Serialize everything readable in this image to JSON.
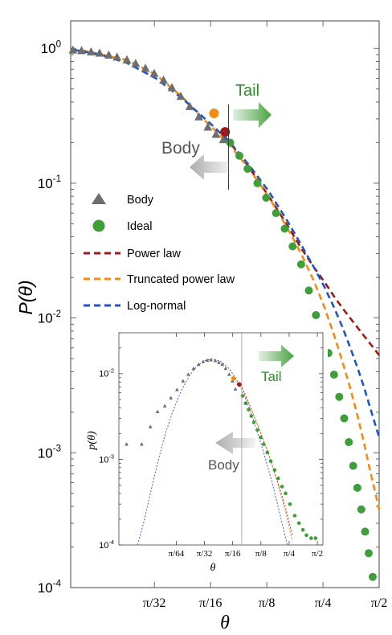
{
  "chart_data": [
    {
      "type": "scatter",
      "scale": {
        "x": "log",
        "y": "log"
      },
      "xlabel": "θ",
      "ylabel": "P(θ)",
      "xlim": [
        0.035,
        1.57
      ],
      "ylim": [
        0.0001,
        1.6
      ],
      "x_ticks": [
        {
          "value": 0.0982,
          "label": "π/32"
        },
        {
          "value": 0.1963,
          "label": "π/16"
        },
        {
          "value": 0.3927,
          "label": "π/8"
        },
        {
          "value": 0.7854,
          "label": "π/4"
        },
        {
          "value": 1.5708,
          "label": "π/2"
        }
      ],
      "y_ticks": [
        {
          "value": 1,
          "base": "10",
          "exp": "0"
        },
        {
          "value": 0.1,
          "base": "10",
          "exp": "-1"
        },
        {
          "value": 0.01,
          "base": "10",
          "exp": "-2"
        },
        {
          "value": 0.001,
          "base": "10",
          "exp": "-3"
        },
        {
          "value": 0.0001,
          "base": "10",
          "exp": "-4"
        }
      ],
      "annotations": {
        "tail": "Tail",
        "body": "Body",
        "split_x": 0.245
      },
      "legend": {
        "placement": "center-left",
        "entries": [
          {
            "label": "Body",
            "marker": "triangle",
            "color": "#6d6d6d"
          },
          {
            "label": "Ideal",
            "marker": "circle",
            "color": "#3f9e3a"
          },
          {
            "label": "Power law",
            "marker": "dash",
            "color": "#a01818"
          },
          {
            "label": "Truncated power law",
            "marker": "dash",
            "color": "#f08c12"
          },
          {
            "label": "Log-normal",
            "marker": "dash",
            "color": "#1f56c4"
          }
        ]
      },
      "series": [
        {
          "name": "Body",
          "type": "scatter",
          "color": "#6d6d6d",
          "x": [
            0.036,
            0.04,
            0.045,
            0.05,
            0.056,
            0.062,
            0.07,
            0.078,
            0.088,
            0.098,
            0.11,
            0.122,
            0.136,
            0.152,
            0.17,
            0.19,
            0.21,
            0.23
          ],
          "y": [
            0.97,
            0.96,
            0.94,
            0.92,
            0.89,
            0.86,
            0.82,
            0.77,
            0.71,
            0.65,
            0.58,
            0.51,
            0.44,
            0.37,
            0.31,
            0.26,
            0.23,
            0.21
          ]
        },
        {
          "name": "Ideal",
          "type": "scatter",
          "color": "#3f9e3a",
          "x": [
            0.25,
            0.28,
            0.31,
            0.35,
            0.39,
            0.44,
            0.49,
            0.54,
            0.6,
            0.66,
            0.72,
            0.78,
            0.84,
            0.9,
            0.96,
            1.02,
            1.08,
            1.14,
            1.2,
            1.26,
            1.32,
            1.38,
            1.45
          ],
          "y": [
            0.2,
            0.16,
            0.128,
            0.1,
            0.078,
            0.06,
            0.046,
            0.034,
            0.025,
            0.016,
            0.0105,
            0.0072,
            0.0055,
            0.0038,
            0.0026,
            0.0018,
            0.0012,
            0.0008,
            0.00055,
            0.00038,
            0.00026,
            0.00018,
            0.00012
          ]
        },
        {
          "name": "Power law",
          "type": "line",
          "color": "#a01818",
          "x": [
            0.235,
            0.3,
            0.4,
            0.5,
            0.6,
            0.7,
            0.8,
            0.9,
            1.0,
            1.15,
            1.3,
            1.45,
            1.57
          ],
          "y": [
            0.22,
            0.145,
            0.081,
            0.05,
            0.033,
            0.024,
            0.0185,
            0.0145,
            0.0118,
            0.0092,
            0.0074,
            0.0061,
            0.0053
          ]
        },
        {
          "name": "Truncated power law",
          "type": "line",
          "color": "#f08c12",
          "x": [
            0.04,
            0.07,
            0.1,
            0.14,
            0.17,
            0.2,
            0.25,
            0.32,
            0.4,
            0.5,
            0.6,
            0.7,
            0.8,
            0.9,
            1.0,
            1.1,
            1.2,
            1.3,
            1.4,
            1.5,
            1.57
          ],
          "y": [
            0.97,
            0.82,
            0.64,
            0.43,
            0.32,
            0.26,
            0.19,
            0.125,
            0.08,
            0.048,
            0.03,
            0.019,
            0.012,
            0.0075,
            0.0047,
            0.003,
            0.0019,
            0.0012,
            0.00075,
            0.0005,
            0.00038
          ]
        },
        {
          "name": "Log-normal",
          "type": "line",
          "color": "#1f56c4",
          "x": [
            0.036,
            0.05,
            0.07,
            0.1,
            0.14,
            0.17,
            0.2,
            0.25,
            0.32,
            0.4,
            0.5,
            0.6,
            0.7,
            0.8,
            0.9,
            1.0,
            1.1,
            1.2,
            1.3,
            1.4,
            1.5,
            1.57
          ],
          "y": [
            0.98,
            0.9,
            0.78,
            0.6,
            0.42,
            0.33,
            0.27,
            0.2,
            0.133,
            0.088,
            0.054,
            0.035,
            0.024,
            0.017,
            0.012,
            0.0085,
            0.006,
            0.0043,
            0.0031,
            0.0022,
            0.0016,
            0.0013
          ]
        }
      ]
    },
    {
      "type": "scatter",
      "scale": {
        "x": "log",
        "y": "log"
      },
      "xlabel": "θ",
      "ylabel": "p(θ)",
      "xlim": [
        0.012,
        1.8
      ],
      "ylim": [
        0.0001,
        0.03
      ],
      "x_ticks": [
        {
          "value": 0.0491,
          "label": "π/64"
        },
        {
          "value": 0.0982,
          "label": "π/32"
        },
        {
          "value": 0.1963,
          "label": "π/16"
        },
        {
          "value": 0.3927,
          "label": "π/8"
        },
        {
          "value": 0.7854,
          "label": "π/4"
        },
        {
          "value": 1.5708,
          "label": "π/2"
        }
      ],
      "y_ticks": [
        {
          "value": 0.01,
          "base": "10",
          "exp": "-2"
        },
        {
          "value": 0.001,
          "base": "10",
          "exp": "-3"
        },
        {
          "value": 0.0001,
          "base": "10",
          "exp": "-4"
        }
      ],
      "annotations": {
        "tail": "Tail",
        "body": "Body",
        "split_x": 0.245
      },
      "series": [
        {
          "name": "Body",
          "type": "scatter",
          "color": "#6d6d6d",
          "x": [
            0.0145,
            0.021,
            0.026,
            0.031,
            0.037,
            0.043,
            0.05,
            0.058,
            0.066,
            0.075,
            0.085,
            0.095,
            0.105,
            0.115,
            0.128,
            0.14,
            0.152,
            0.165,
            0.18,
            0.195,
            0.21
          ],
          "y": [
            0.0015,
            0.0015,
            0.0024,
            0.0036,
            0.0042,
            0.0052,
            0.0065,
            0.0082,
            0.0098,
            0.0115,
            0.0128,
            0.0138,
            0.0143,
            0.0145,
            0.0142,
            0.0135,
            0.0128,
            0.0115,
            0.0098,
            0.0082,
            0.0066
          ]
        },
        {
          "name": "Ideal",
          "type": "scatter",
          "color": "#3f9e3a",
          "x": [
            0.25,
            0.27,
            0.29,
            0.31,
            0.33,
            0.36,
            0.39,
            0.42,
            0.46,
            0.5,
            0.55,
            0.6,
            0.66,
            0.72,
            0.8,
            0.9,
            1.0,
            1.1,
            1.2,
            1.35,
            1.5
          ],
          "y": [
            0.0055,
            0.0045,
            0.0038,
            0.0032,
            0.0027,
            0.0022,
            0.0018,
            0.0015,
            0.0012,
            0.00095,
            0.00075,
            0.0006,
            0.00048,
            0.0004,
            0.0003,
            0.00022,
            0.00018,
            0.00015,
            0.00013,
            0.00012,
            0.00012
          ]
        },
        {
          "name": "Log-normal",
          "type": "line",
          "color": "#1f56c4",
          "x": [
            0.019,
            0.022,
            0.026,
            0.031,
            0.037,
            0.045,
            0.055,
            0.068,
            0.082,
            0.1,
            0.12,
            0.145,
            0.175,
            0.21,
            0.25,
            0.3,
            0.36,
            0.43,
            0.52,
            0.62,
            0.75
          ],
          "y": [
            0.0001,
            0.00018,
            0.0004,
            0.0009,
            0.0019,
            0.0036,
            0.0062,
            0.0095,
            0.0123,
            0.0143,
            0.0148,
            0.014,
            0.0118,
            0.009,
            0.0062,
            0.0038,
            0.0021,
            0.0011,
            0.00052,
            0.00024,
            0.0001
          ]
        },
        {
          "name": "Power law",
          "type": "line",
          "color": "#a01818",
          "x": [
            0.24,
            0.3,
            0.38,
            0.48,
            0.6,
            0.72,
            0.85
          ],
          "y": [
            0.0075,
            0.0042,
            0.0022,
            0.0011,
            0.00052,
            0.00027,
            0.00013
          ]
        },
        {
          "name": "Truncated power law",
          "type": "line",
          "color": "#f08c12",
          "x": [
            0.2,
            0.24,
            0.3,
            0.38,
            0.48,
            0.6,
            0.72,
            0.85
          ],
          "y": [
            0.0088,
            0.0068,
            0.0042,
            0.0022,
            0.0011,
            0.0005,
            0.00024,
            0.00011
          ]
        }
      ]
    }
  ]
}
